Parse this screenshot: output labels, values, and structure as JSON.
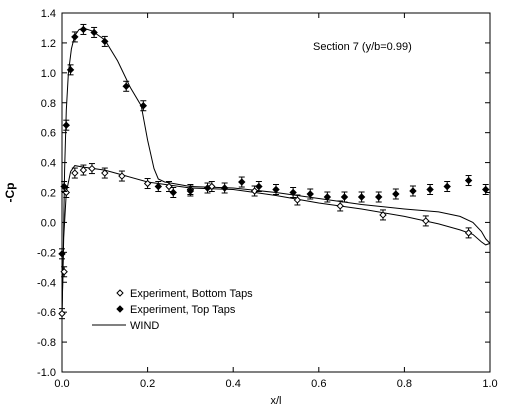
{
  "chart_data": {
    "type": "scatter",
    "title": "",
    "annotation": "Section 7 (y/b=0.99)",
    "xlabel": "x/l",
    "ylabel": "-Cp",
    "xlim": [
      0.0,
      1.0
    ],
    "ylim": [
      -1.0,
      1.4
    ],
    "x_ticks": [
      "0.0",
      "0.2",
      "0.4",
      "0.6",
      "0.8",
      "1.0"
    ],
    "y_ticks": [
      "1.4",
      "1.2",
      "1.0",
      "0.8",
      "0.6",
      "0.4",
      "0.2",
      "0.0",
      "-0.2",
      "-0.4",
      "-0.6",
      "-0.8",
      "-1.0"
    ],
    "grid": false,
    "legend_position": "bottom-left",
    "series": [
      {
        "name": "Experiment, Bottom Taps",
        "marker": "open-diamond",
        "color": "#000000",
        "points": [
          {
            "x": 0.0,
            "y": -0.61
          },
          {
            "x": 0.005,
            "y": -0.33
          },
          {
            "x": 0.01,
            "y": 0.2
          },
          {
            "x": 0.03,
            "y": 0.33
          },
          {
            "x": 0.05,
            "y": 0.35
          },
          {
            "x": 0.07,
            "y": 0.36
          },
          {
            "x": 0.1,
            "y": 0.33
          },
          {
            "x": 0.14,
            "y": 0.31
          },
          {
            "x": 0.2,
            "y": 0.26
          },
          {
            "x": 0.25,
            "y": 0.24
          },
          {
            "x": 0.3,
            "y": 0.22
          },
          {
            "x": 0.35,
            "y": 0.24
          },
          {
            "x": 0.45,
            "y": 0.21
          },
          {
            "x": 0.55,
            "y": 0.15
          },
          {
            "x": 0.65,
            "y": 0.11
          },
          {
            "x": 0.75,
            "y": 0.05
          },
          {
            "x": 0.85,
            "y": 0.01
          },
          {
            "x": 0.95,
            "y": -0.07
          }
        ]
      },
      {
        "name": "Experiment, Top Taps",
        "marker": "filled-diamond",
        "color": "#000000",
        "points": [
          {
            "x": 0.0,
            "y": -0.21
          },
          {
            "x": 0.005,
            "y": 0.24
          },
          {
            "x": 0.01,
            "y": 0.65
          },
          {
            "x": 0.02,
            "y": 1.02
          },
          {
            "x": 0.03,
            "y": 1.24
          },
          {
            "x": 0.05,
            "y": 1.29
          },
          {
            "x": 0.075,
            "y": 1.27
          },
          {
            "x": 0.1,
            "y": 1.21
          },
          {
            "x": 0.15,
            "y": 0.91
          },
          {
            "x": 0.19,
            "y": 0.78
          },
          {
            "x": 0.225,
            "y": 0.24
          },
          {
            "x": 0.26,
            "y": 0.2
          },
          {
            "x": 0.3,
            "y": 0.21
          },
          {
            "x": 0.34,
            "y": 0.23
          },
          {
            "x": 0.38,
            "y": 0.23
          },
          {
            "x": 0.42,
            "y": 0.27
          },
          {
            "x": 0.46,
            "y": 0.24
          },
          {
            "x": 0.5,
            "y": 0.22
          },
          {
            "x": 0.54,
            "y": 0.2
          },
          {
            "x": 0.58,
            "y": 0.19
          },
          {
            "x": 0.62,
            "y": 0.17
          },
          {
            "x": 0.66,
            "y": 0.17
          },
          {
            "x": 0.7,
            "y": 0.17
          },
          {
            "x": 0.74,
            "y": 0.17
          },
          {
            "x": 0.78,
            "y": 0.19
          },
          {
            "x": 0.82,
            "y": 0.21
          },
          {
            "x": 0.86,
            "y": 0.22
          },
          {
            "x": 0.9,
            "y": 0.24
          },
          {
            "x": 0.95,
            "y": 0.28
          },
          {
            "x": 0.99,
            "y": 0.22
          }
        ]
      },
      {
        "name": "WIND",
        "marker": "line",
        "color": "#000000",
        "upper": [
          {
            "x": 0.0,
            "y": -0.62
          },
          {
            "x": 0.003,
            "y": -0.2
          },
          {
            "x": 0.006,
            "y": 0.35
          },
          {
            "x": 0.01,
            "y": 0.75
          },
          {
            "x": 0.015,
            "y": 1.0
          },
          {
            "x": 0.022,
            "y": 1.16
          },
          {
            "x": 0.03,
            "y": 1.25
          },
          {
            "x": 0.04,
            "y": 1.29
          },
          {
            "x": 0.05,
            "y": 1.3
          },
          {
            "x": 0.07,
            "y": 1.28
          },
          {
            "x": 0.1,
            "y": 1.22
          },
          {
            "x": 0.13,
            "y": 1.08
          },
          {
            "x": 0.16,
            "y": 0.9
          },
          {
            "x": 0.185,
            "y": 0.78
          },
          {
            "x": 0.2,
            "y": 0.55
          },
          {
            "x": 0.215,
            "y": 0.36
          },
          {
            "x": 0.225,
            "y": 0.29
          },
          {
            "x": 0.24,
            "y": 0.27
          },
          {
            "x": 0.3,
            "y": 0.24
          },
          {
            "x": 0.4,
            "y": 0.23
          },
          {
            "x": 0.5,
            "y": 0.2
          },
          {
            "x": 0.6,
            "y": 0.16
          },
          {
            "x": 0.7,
            "y": 0.12
          },
          {
            "x": 0.8,
            "y": 0.09
          },
          {
            "x": 0.88,
            "y": 0.07
          },
          {
            "x": 0.93,
            "y": 0.04
          },
          {
            "x": 0.96,
            "y": 0.0
          },
          {
            "x": 0.98,
            "y": -0.06
          },
          {
            "x": 0.99,
            "y": -0.11
          },
          {
            "x": 1.0,
            "y": -0.14
          }
        ],
        "lower": [
          {
            "x": 0.0,
            "y": -0.62
          },
          {
            "x": 0.004,
            "y": -0.1
          },
          {
            "x": 0.01,
            "y": 0.2
          },
          {
            "x": 0.02,
            "y": 0.34
          },
          {
            "x": 0.03,
            "y": 0.38
          },
          {
            "x": 0.05,
            "y": 0.37
          },
          {
            "x": 0.1,
            "y": 0.35
          },
          {
            "x": 0.15,
            "y": 0.31
          },
          {
            "x": 0.2,
            "y": 0.27
          },
          {
            "x": 0.3,
            "y": 0.23
          },
          {
            "x": 0.4,
            "y": 0.22
          },
          {
            "x": 0.5,
            "y": 0.18
          },
          {
            "x": 0.6,
            "y": 0.13
          },
          {
            "x": 0.7,
            "y": 0.09
          },
          {
            "x": 0.8,
            "y": 0.04
          },
          {
            "x": 0.88,
            "y": -0.01
          },
          {
            "x": 0.93,
            "y": -0.05
          },
          {
            "x": 0.96,
            "y": -0.08
          },
          {
            "x": 0.98,
            "y": -0.13
          },
          {
            "x": 0.99,
            "y": -0.15
          },
          {
            "x": 1.0,
            "y": -0.14
          }
        ]
      }
    ]
  }
}
